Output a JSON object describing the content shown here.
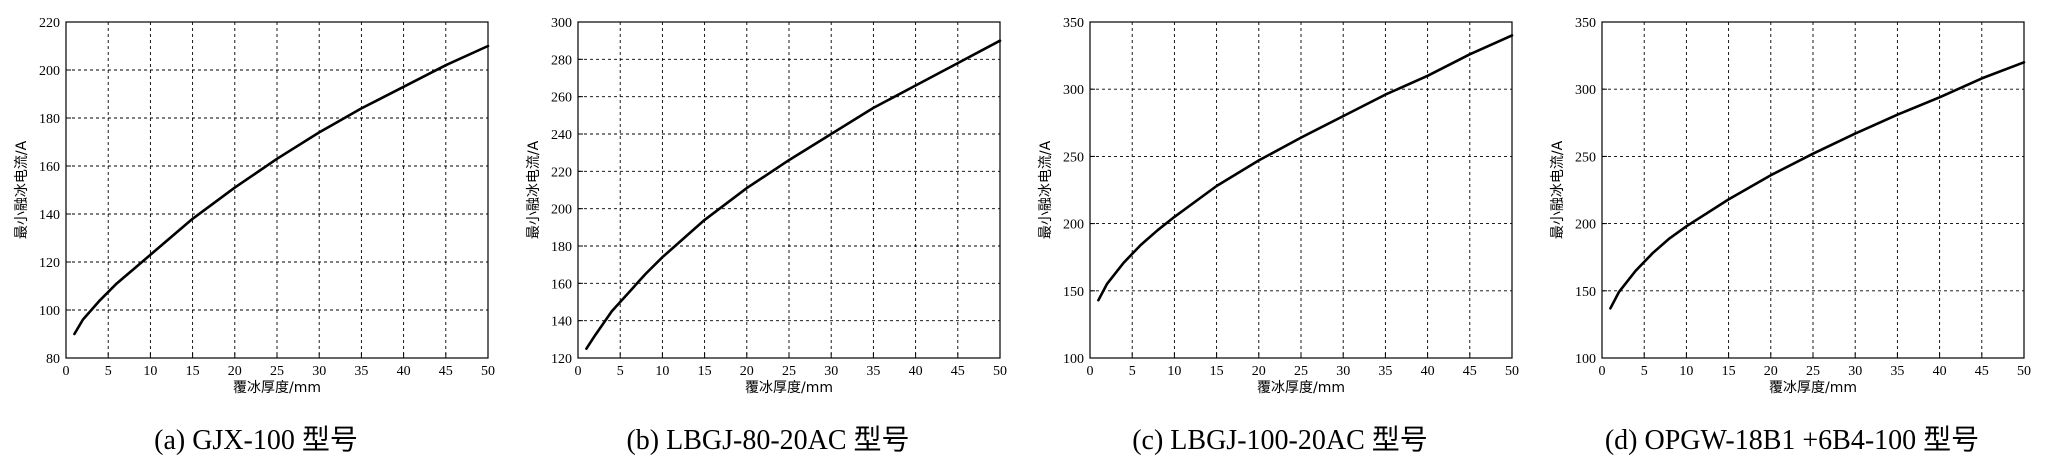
{
  "chart_data": [
    {
      "type": "line",
      "caption": "(a) GJX-100 型号",
      "xlabel": "覆冰厚度/mm",
      "ylabel": "最小融冰电流/A",
      "xlim": [
        0,
        50
      ],
      "ylim": [
        80,
        220
      ],
      "xticks": [
        0,
        5,
        10,
        15,
        20,
        25,
        30,
        35,
        40,
        45,
        50
      ],
      "yticks": [
        80,
        100,
        120,
        140,
        160,
        180,
        200,
        220
      ],
      "grid": true,
      "series": [
        {
          "x": [
            1,
            2,
            4,
            6,
            8,
            10,
            15,
            20,
            25,
            30,
            35,
            40,
            45,
            50
          ],
          "y": [
            90,
            96,
            104,
            111,
            117,
            123,
            138,
            151,
            163,
            174,
            184,
            193,
            202,
            210
          ]
        }
      ]
    },
    {
      "type": "line",
      "caption": "(b) LBGJ-80-20AC 型号",
      "xlabel": "覆冰厚度/mm",
      "ylabel": "最小融冰电流/A",
      "xlim": [
        0,
        50
      ],
      "ylim": [
        120,
        300
      ],
      "xticks": [
        0,
        5,
        10,
        15,
        20,
        25,
        30,
        35,
        40,
        45,
        50
      ],
      "yticks": [
        120,
        140,
        160,
        180,
        200,
        220,
        240,
        260,
        280,
        300
      ],
      "grid": true,
      "series": [
        {
          "x": [
            1,
            2,
            4,
            6,
            8,
            10,
            15,
            20,
            25,
            30,
            35,
            40,
            45,
            50
          ],
          "y": [
            125,
            132,
            145,
            155,
            165,
            174,
            194,
            211,
            226,
            240,
            254,
            266,
            278,
            290
          ]
        }
      ]
    },
    {
      "type": "line",
      "caption": "(c) LBGJ-100-20AC 型号",
      "xlabel": "覆冰厚度/mm",
      "ylabel": "最小融冰电流/A",
      "xlim": [
        0,
        50
      ],
      "ylim": [
        100,
        350
      ],
      "xticks": [
        0,
        5,
        10,
        15,
        20,
        25,
        30,
        35,
        40,
        45,
        50
      ],
      "yticks": [
        100,
        150,
        200,
        250,
        300,
        350
      ],
      "grid": true,
      "series": [
        {
          "x": [
            1,
            2,
            4,
            6,
            8,
            10,
            15,
            20,
            25,
            30,
            35,
            40,
            45,
            50
          ],
          "y": [
            143,
            155,
            171,
            184,
            195,
            205,
            228,
            247,
            264,
            280,
            296,
            310,
            326,
            340
          ]
        }
      ]
    },
    {
      "type": "line",
      "caption": "(d) OPGW-18B1 +6B4-100 型号",
      "xlabel": "覆冰厚度/mm",
      "ylabel": "最小融冰电流/A",
      "xlim": [
        0,
        50
      ],
      "ylim": [
        100,
        350
      ],
      "xticks": [
        0,
        5,
        10,
        15,
        20,
        25,
        30,
        35,
        40,
        45,
        50
      ],
      "yticks": [
        100,
        150,
        200,
        250,
        300,
        350
      ],
      "grid": true,
      "series": [
        {
          "x": [
            1,
            2,
            4,
            6,
            8,
            10,
            15,
            20,
            25,
            30,
            35,
            40,
            45,
            50
          ],
          "y": [
            137,
            149,
            165,
            178,
            189,
            198,
            218,
            236,
            252,
            267,
            281,
            294,
            308,
            320
          ]
        }
      ]
    }
  ]
}
